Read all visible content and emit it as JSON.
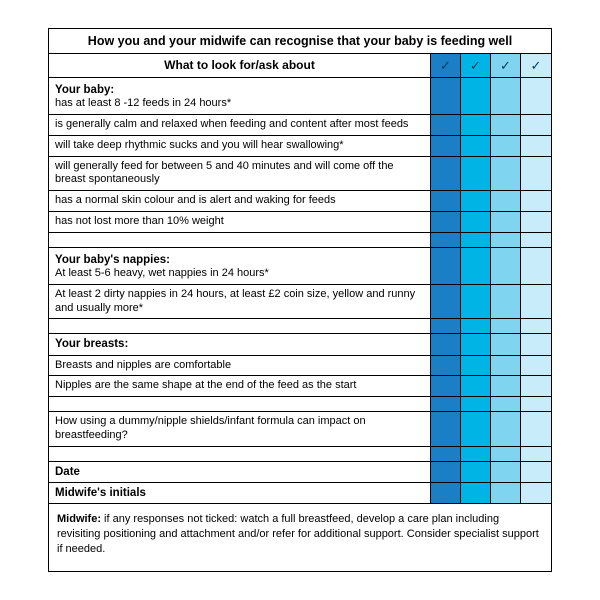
{
  "colors": {
    "c1": "#1a7fc4",
    "c2": "#00b4e6",
    "c3": "#7fd4f0",
    "c4": "#c8ecfa"
  },
  "title": "How you and your midwife can recognise that your baby is feeding well",
  "subheader": "What to look for/ask about",
  "tick": "✓",
  "sections": {
    "baby": {
      "heading": "Your baby:",
      "first": "has at least 8 -12 feeds in 24 hours*",
      "rows": [
        "is generally calm and relaxed when feeding and content after most feeds",
        "will take deep rhythmic sucks and you will hear swallowing*",
        "will generally feed for between 5 and 40 minutes and will come off the breast spontaneously",
        "has a normal skin colour and is alert and waking for feeds",
        "has not lost more than 10% weight"
      ]
    },
    "nappies": {
      "heading": "Your baby's nappies:",
      "first": "At least 5-6 heavy, wet nappies in 24 hours*",
      "rows": [
        "At least 2 dirty nappies in 24 hours, at least £2 coin size,  yellow and runny and usually more*"
      ]
    },
    "breasts": {
      "heading": "Your breasts:",
      "rows": [
        "Breasts and nipples are comfortable",
        "Nipples are the same shape at the end of the feed as the start"
      ]
    },
    "impact": "How using a dummy/nipple shields/infant formula can impact on breastfeeding?",
    "date": "Date",
    "initials": "Midwife's initials"
  },
  "footer_bold": "Midwife:",
  "footer_text": " if any responses not ticked: watch a full breastfeed, develop a care plan including revisiting positioning and attachment and/or refer for additional support. Consider specialist support if needed."
}
